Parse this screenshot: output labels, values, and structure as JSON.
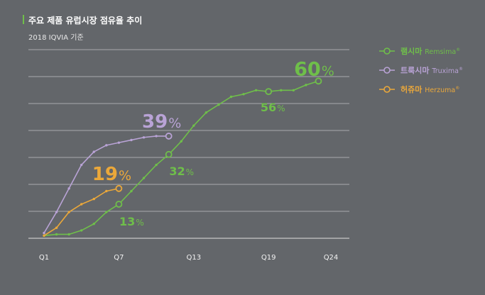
{
  "header": {
    "title": "주요 제품 유럽시장 점유율 추이",
    "subtitle": "2018 IQVIA  기준"
  },
  "chart_data": {
    "type": "line",
    "x": [
      1,
      2,
      3,
      4,
      5,
      6,
      7,
      8,
      9,
      10,
      11,
      12,
      13,
      14,
      15,
      16,
      17,
      18,
      19,
      20,
      21,
      22,
      23,
      24
    ],
    "xticks": [
      "Q1",
      "Q7",
      "Q13",
      "Q19",
      "Q24"
    ],
    "xtick_positions": [
      1,
      7,
      13,
      19,
      24
    ],
    "ylim": [
      0,
      72
    ],
    "grid": true,
    "legend": "top-right",
    "series": [
      {
        "name": "램시마",
        "brand": "Remsima",
        "color": "#6fbf4a",
        "x": [
          1,
          2,
          3,
          4,
          5,
          6,
          7,
          8,
          9,
          10,
          11,
          12,
          13,
          14,
          15,
          16,
          17,
          18,
          19,
          20,
          21,
          22,
          23
        ],
        "values": [
          1,
          1.5,
          1.5,
          3,
          5.5,
          10,
          13,
          18,
          23,
          28,
          32,
          37,
          43,
          48,
          51,
          54,
          55,
          56.5,
          56,
          56.5,
          56.5,
          58.5,
          60
        ],
        "labels": [
          {
            "x": 7,
            "value": 13,
            "text": "13"
          },
          {
            "x": 11,
            "value": 32,
            "text": "32"
          },
          {
            "x": 19,
            "value": 56,
            "text": "56"
          },
          {
            "x": 23,
            "value": 60,
            "text": "60"
          }
        ]
      },
      {
        "name": "트룩시마",
        "brand": "Truxima",
        "color": "#b9a3d6",
        "x": [
          1,
          2,
          3,
          4,
          5,
          6,
          7,
          8,
          9,
          10,
          11
        ],
        "values": [
          2,
          10,
          19,
          28,
          33,
          35.5,
          36.5,
          37.5,
          38.5,
          39,
          39
        ],
        "labels": [
          {
            "x": 11,
            "value": 39,
            "text": "39"
          }
        ]
      },
      {
        "name": "허쥬마",
        "brand": "Herzuma",
        "color": "#eba83a",
        "x": [
          1,
          2,
          3,
          4,
          5,
          6,
          7
        ],
        "values": [
          1,
          4,
          10,
          13,
          15,
          18,
          19
        ],
        "labels": [
          {
            "x": 7,
            "value": 19,
            "text": "19"
          }
        ]
      }
    ]
  }
}
